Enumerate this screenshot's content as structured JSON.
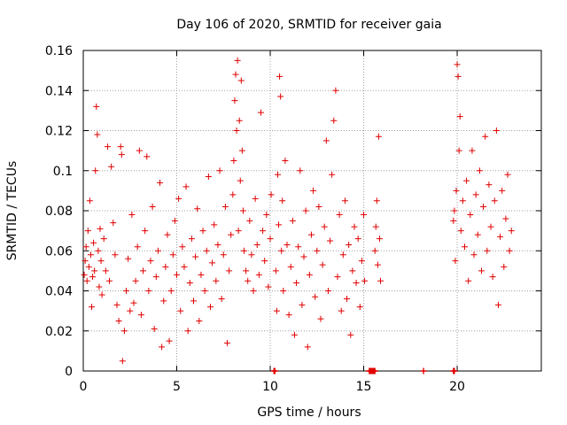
{
  "chart_data": {
    "type": "scatter",
    "title": "Day 106 of 2020, SRMTID for receiver gaia",
    "xlabel": "GPS time / hours",
    "ylabel": "SRMTID / TECUs",
    "xlim": [
      0,
      24.5
    ],
    "ylim": [
      0,
      0.16
    ],
    "grid": true,
    "marker": "plus",
    "color": "#e00000",
    "x_ticks": [
      0,
      5,
      10,
      15,
      20
    ],
    "x_tick_labels": [
      "0",
      "5",
      "10",
      "15",
      "20"
    ],
    "y_ticks": [
      0,
      0.02,
      0.04,
      0.06,
      0.08,
      0.1,
      0.12,
      0.14,
      0.16
    ],
    "y_tick_labels": [
      "0",
      "0.02",
      "0.04",
      "0.06",
      "0.08",
      "0.1",
      "0.12",
      "0.14",
      "0.16"
    ],
    "points": [
      [
        0.05,
        0.048
      ],
      [
        0.1,
        0.055
      ],
      [
        0.15,
        0.062
      ],
      [
        0.2,
        0.045
      ],
      [
        0.25,
        0.07
      ],
      [
        0.3,
        0.052
      ],
      [
        0.35,
        0.085
      ],
      [
        0.4,
        0.058
      ],
      [
        0.45,
        0.032
      ],
      [
        0.5,
        0.047
      ],
      [
        0.55,
        0.064
      ],
      [
        0.6,
        0.05
      ],
      [
        0.65,
        0.1
      ],
      [
        0.7,
        0.132
      ],
      [
        0.75,
        0.118
      ],
      [
        0.8,
        0.06
      ],
      [
        0.85,
        0.042
      ],
      [
        0.9,
        0.071
      ],
      [
        0.95,
        0.055
      ],
      [
        1.0,
        0.038
      ],
      [
        1.1,
        0.066
      ],
      [
        1.2,
        0.05
      ],
      [
        1.3,
        0.112
      ],
      [
        1.4,
        0.045
      ],
      [
        1.5,
        0.102
      ],
      [
        1.6,
        0.074
      ],
      [
        1.7,
        0.058
      ],
      [
        1.8,
        0.033
      ],
      [
        1.9,
        0.025
      ],
      [
        2.0,
        0.112
      ],
      [
        2.05,
        0.108
      ],
      [
        2.1,
        0.005
      ],
      [
        2.2,
        0.02
      ],
      [
        2.3,
        0.04
      ],
      [
        2.4,
        0.056
      ],
      [
        2.5,
        0.03
      ],
      [
        2.6,
        0.078
      ],
      [
        2.7,
        0.034
      ],
      [
        2.8,
        0.045
      ],
      [
        2.9,
        0.062
      ],
      [
        3.0,
        0.11
      ],
      [
        3.1,
        0.028
      ],
      [
        3.2,
        0.05
      ],
      [
        3.3,
        0.07
      ],
      [
        3.4,
        0.107
      ],
      [
        3.5,
        0.04
      ],
      [
        3.6,
        0.055
      ],
      [
        3.7,
        0.082
      ],
      [
        3.8,
        0.021
      ],
      [
        3.9,
        0.047
      ],
      [
        4.0,
        0.06
      ],
      [
        4.1,
        0.094
      ],
      [
        4.2,
        0.012
      ],
      [
        4.3,
        0.035
      ],
      [
        4.4,
        0.052
      ],
      [
        4.5,
        0.068
      ],
      [
        4.6,
        0.015
      ],
      [
        4.7,
        0.04
      ],
      [
        4.8,
        0.058
      ],
      [
        4.9,
        0.075
      ],
      [
        5.0,
        0.048
      ],
      [
        5.1,
        0.086
      ],
      [
        5.2,
        0.03
      ],
      [
        5.3,
        0.062
      ],
      [
        5.4,
        0.052
      ],
      [
        5.5,
        0.092
      ],
      [
        5.6,
        0.02
      ],
      [
        5.7,
        0.044
      ],
      [
        5.8,
        0.066
      ],
      [
        5.9,
        0.035
      ],
      [
        6.0,
        0.057
      ],
      [
        6.1,
        0.081
      ],
      [
        6.2,
        0.025
      ],
      [
        6.3,
        0.048
      ],
      [
        6.4,
        0.07
      ],
      [
        6.5,
        0.04
      ],
      [
        6.6,
        0.06
      ],
      [
        6.7,
        0.097
      ],
      [
        6.8,
        0.032
      ],
      [
        6.9,
        0.054
      ],
      [
        7.0,
        0.073
      ],
      [
        7.1,
        0.045
      ],
      [
        7.2,
        0.063
      ],
      [
        7.3,
        0.1
      ],
      [
        7.4,
        0.036
      ],
      [
        7.5,
        0.058
      ],
      [
        7.6,
        0.082
      ],
      [
        7.7,
        0.014
      ],
      [
        7.8,
        0.05
      ],
      [
        7.9,
        0.068
      ],
      [
        8.0,
        0.088
      ],
      [
        8.05,
        0.105
      ],
      [
        8.1,
        0.135
      ],
      [
        8.15,
        0.148
      ],
      [
        8.2,
        0.12
      ],
      [
        8.25,
        0.155
      ],
      [
        8.3,
        0.07
      ],
      [
        8.35,
        0.125
      ],
      [
        8.4,
        0.095
      ],
      [
        8.45,
        0.145
      ],
      [
        8.5,
        0.11
      ],
      [
        8.55,
        0.08
      ],
      [
        8.6,
        0.06
      ],
      [
        8.7,
        0.05
      ],
      [
        8.8,
        0.045
      ],
      [
        8.9,
        0.075
      ],
      [
        9.0,
        0.058
      ],
      [
        9.1,
        0.04
      ],
      [
        9.2,
        0.086
      ],
      [
        9.3,
        0.063
      ],
      [
        9.4,
        0.048
      ],
      [
        9.5,
        0.129
      ],
      [
        9.6,
        0.07
      ],
      [
        9.7,
        0.055
      ],
      [
        9.8,
        0.078
      ],
      [
        9.9,
        0.042
      ],
      [
        10.0,
        0.066
      ],
      [
        10.05,
        0.088
      ],
      [
        10.3,
        0.05
      ],
      [
        10.35,
        0.03
      ],
      [
        10.4,
        0.098
      ],
      [
        10.45,
        0.073
      ],
      [
        10.5,
        0.147
      ],
      [
        10.55,
        0.137
      ],
      [
        10.6,
        0.06
      ],
      [
        10.65,
        0.085
      ],
      [
        10.7,
        0.04
      ],
      [
        10.8,
        0.105
      ],
      [
        10.9,
        0.063
      ],
      [
        11.0,
        0.028
      ],
      [
        11.1,
        0.052
      ],
      [
        11.2,
        0.075
      ],
      [
        11.3,
        0.018
      ],
      [
        11.4,
        0.044
      ],
      [
        11.5,
        0.062
      ],
      [
        11.6,
        0.1
      ],
      [
        11.7,
        0.033
      ],
      [
        11.8,
        0.057
      ],
      [
        11.9,
        0.08
      ],
      [
        12.0,
        0.012
      ],
      [
        12.1,
        0.048
      ],
      [
        12.2,
        0.068
      ],
      [
        12.3,
        0.09
      ],
      [
        12.4,
        0.037
      ],
      [
        12.5,
        0.06
      ],
      [
        12.6,
        0.082
      ],
      [
        12.7,
        0.026
      ],
      [
        12.8,
        0.053
      ],
      [
        12.9,
        0.072
      ],
      [
        13.0,
        0.115
      ],
      [
        13.1,
        0.04
      ],
      [
        13.2,
        0.065
      ],
      [
        13.3,
        0.098
      ],
      [
        13.4,
        0.125
      ],
      [
        13.5,
        0.14
      ],
      [
        13.6,
        0.047
      ],
      [
        13.7,
        0.078
      ],
      [
        13.8,
        0.03
      ],
      [
        13.9,
        0.058
      ],
      [
        14.0,
        0.085
      ],
      [
        14.1,
        0.036
      ],
      [
        14.2,
        0.063
      ],
      [
        14.3,
        0.018
      ],
      [
        14.4,
        0.05
      ],
      [
        14.5,
        0.072
      ],
      [
        14.6,
        0.044
      ],
      [
        14.7,
        0.066
      ],
      [
        14.8,
        0.032
      ],
      [
        14.9,
        0.055
      ],
      [
        15.0,
        0.078
      ],
      [
        15.05,
        0.045
      ],
      [
        15.6,
        0.06
      ],
      [
        15.65,
        0.072
      ],
      [
        15.7,
        0.085
      ],
      [
        15.75,
        0.053
      ],
      [
        15.8,
        0.117
      ],
      [
        15.85,
        0.066
      ],
      [
        15.9,
        0.045
      ],
      [
        19.8,
        0.075
      ],
      [
        19.85,
        0.08
      ],
      [
        19.9,
        0.055
      ],
      [
        19.95,
        0.09
      ],
      [
        20.0,
        0.153
      ],
      [
        20.05,
        0.147
      ],
      [
        20.1,
        0.11
      ],
      [
        20.15,
        0.127
      ],
      [
        20.2,
        0.07
      ],
      [
        20.3,
        0.085
      ],
      [
        20.4,
        0.062
      ],
      [
        20.5,
        0.095
      ],
      [
        20.6,
        0.045
      ],
      [
        20.7,
        0.078
      ],
      [
        20.8,
        0.11
      ],
      [
        20.9,
        0.058
      ],
      [
        21.0,
        0.088
      ],
      [
        21.1,
        0.068
      ],
      [
        21.2,
        0.1
      ],
      [
        21.3,
        0.05
      ],
      [
        21.4,
        0.082
      ],
      [
        21.5,
        0.117
      ],
      [
        21.6,
        0.06
      ],
      [
        21.7,
        0.093
      ],
      [
        21.8,
        0.072
      ],
      [
        21.9,
        0.047
      ],
      [
        22.0,
        0.085
      ],
      [
        22.1,
        0.12
      ],
      [
        22.2,
        0.033
      ],
      [
        22.3,
        0.067
      ],
      [
        22.4,
        0.09
      ],
      [
        22.5,
        0.052
      ],
      [
        22.6,
        0.076
      ],
      [
        22.7,
        0.098
      ],
      [
        22.8,
        0.06
      ],
      [
        22.9,
        0.07
      ]
    ],
    "zero_markers_x": [
      10.2,
      10.25,
      15.3,
      15.35,
      15.4,
      15.45,
      15.5,
      15.55,
      15.6,
      18.2,
      19.8,
      19.85
    ]
  }
}
